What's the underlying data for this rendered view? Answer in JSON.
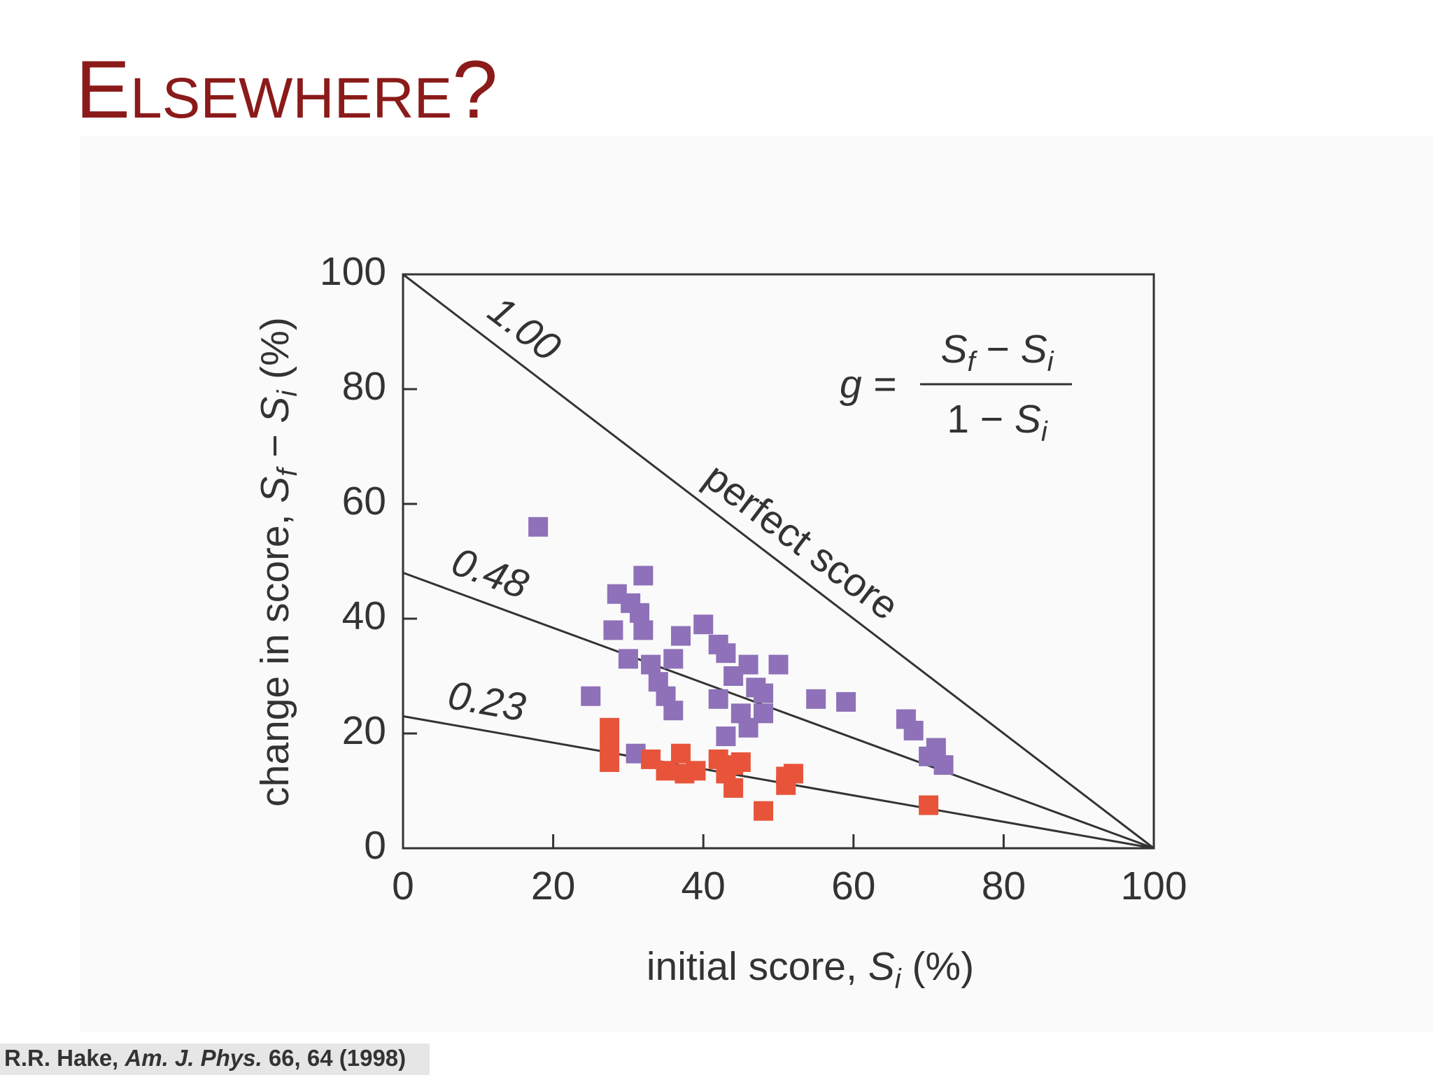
{
  "title": "Elsewhere?",
  "citation": {
    "author": "R.R. Hake,",
    "journal": "Am. J. Phys.",
    "ref": "66, 64 (1998)"
  },
  "chart_data": {
    "type": "scatter",
    "x_label": {
      "text": "initial score, ",
      "var": "S",
      "sub": "i",
      "unit": " (%)"
    },
    "y_label": {
      "text": "change in score, ",
      "var1": "S",
      "sub1": "f",
      "op": " − ",
      "var2": "S",
      "sub2": "i",
      "unit": " (%)"
    },
    "formula": {
      "lhs": "g =",
      "num_var1": "S",
      "num_sub1": "f",
      "num_op": " − ",
      "num_var2": "S",
      "num_sub2": "i",
      "den_text": "1 − ",
      "den_var": "S",
      "den_sub": "i"
    },
    "annotations": [
      "perfect score"
    ],
    "xlim": [
      0,
      100
    ],
    "ylim": [
      0,
      100
    ],
    "xticks": [
      0,
      20,
      40,
      60,
      80,
      100
    ],
    "yticks": [
      0,
      20,
      40,
      60,
      80,
      100
    ],
    "lines": [
      {
        "name": "1.00",
        "color": "#333333",
        "x": [
          0,
          100
        ],
        "values": [
          100,
          0
        ]
      },
      {
        "name": "0.48",
        "color": "#333333",
        "x": [
          0,
          100
        ],
        "values": [
          48,
          0
        ]
      },
      {
        "name": "0.23",
        "color": "#333333",
        "x": [
          0,
          100
        ],
        "values": [
          23,
          0
        ]
      }
    ],
    "series": [
      {
        "color": "#8e71b8",
        "x": [
          18,
          32,
          28.5,
          30.3,
          31.5,
          28,
          32,
          37,
          40,
          42,
          43,
          30,
          33,
          36,
          46,
          50,
          34,
          44,
          47,
          48,
          25,
          35,
          42,
          55,
          59,
          36,
          45,
          48,
          67,
          68,
          43,
          46,
          71,
          70,
          72,
          31
        ],
        "values": [
          56,
          47.5,
          44.3,
          42.7,
          41,
          38,
          38,
          37,
          39,
          35.5,
          34,
          33,
          32,
          33,
          32,
          32,
          29,
          30,
          28,
          27,
          26.5,
          26.5,
          26,
          26,
          25.5,
          24,
          23.5,
          23.5,
          22.5,
          20.5,
          19.5,
          21,
          17.5,
          16,
          14.5,
          16.5
        ]
      },
      {
        "color": "#e8543a",
        "x": [
          27.5,
          27.5,
          27.5,
          33,
          35,
          37,
          37.5,
          39,
          42,
          44,
          45,
          43,
          44,
          48,
          51,
          52,
          51,
          70
        ],
        "values": [
          21,
          18,
          15,
          15.5,
          13.5,
          16.5,
          13,
          13.5,
          15.5,
          14.5,
          15,
          13,
          10.5,
          6.5,
          12.5,
          13,
          11,
          7.5
        ]
      }
    ]
  }
}
